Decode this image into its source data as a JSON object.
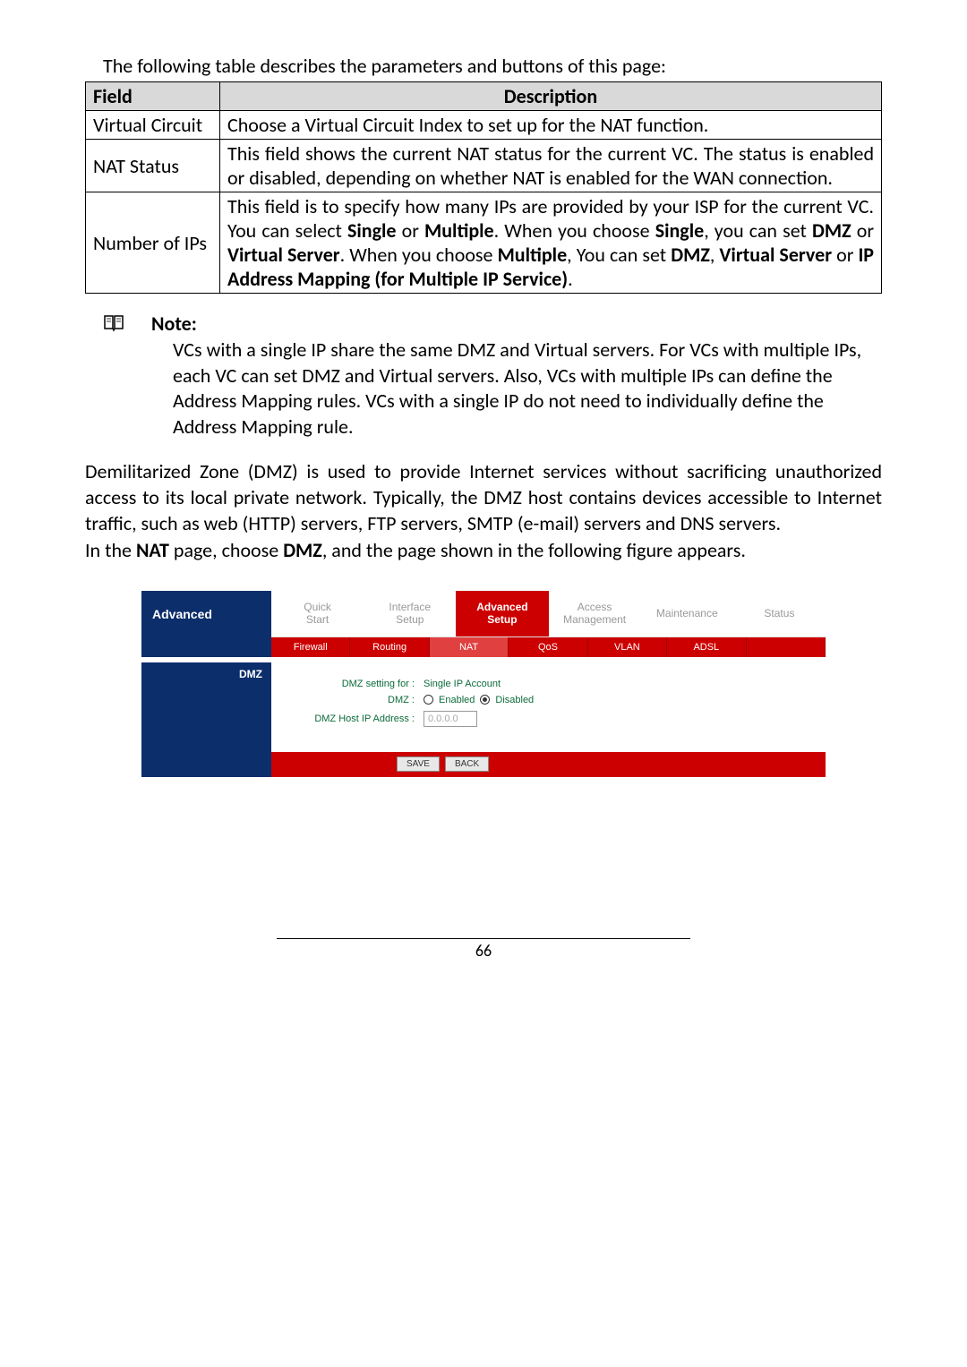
{
  "intro": "The following table describes the parameters and buttons of this page:",
  "table": {
    "headers": [
      "Field",
      "Description"
    ],
    "rows": [
      {
        "field": "Virtual Circuit",
        "description": "Choose a Virtual Circuit Index to set up for the NAT function."
      },
      {
        "field": "NAT Status",
        "description": "This field shows the current NAT status for the current VC. The status is enabled or disabled, depending on whether NAT is enabled for the WAN connection."
      },
      {
        "field": "Number of IPs",
        "description_parts": [
          {
            "text": "This field is to specify how many IPs are provided by your ISP for the current VC. You can select ",
            "bold": false
          },
          {
            "text": "Single",
            "bold": true
          },
          {
            "text": " or ",
            "bold": false
          },
          {
            "text": "Multiple",
            "bold": true
          },
          {
            "text": ". When you choose ",
            "bold": false
          },
          {
            "text": "Single",
            "bold": true
          },
          {
            "text": ", you can set ",
            "bold": false
          },
          {
            "text": "DMZ",
            "bold": true
          },
          {
            "text": " or ",
            "bold": false
          },
          {
            "text": "Virtual Server",
            "bold": true
          },
          {
            "text": ". When you choose ",
            "bold": false
          },
          {
            "text": "Multiple",
            "bold": true
          },
          {
            "text": ", You can set ",
            "bold": false
          },
          {
            "text": "DMZ",
            "bold": true
          },
          {
            "text": ", ",
            "bold": false
          },
          {
            "text": "Virtual Server",
            "bold": true
          },
          {
            "text": " or ",
            "bold": false
          },
          {
            "text": "IP Address Mapping (for Multiple IP Service)",
            "bold": true
          },
          {
            "text": ".",
            "bold": false
          }
        ]
      }
    ]
  },
  "note": {
    "label": "Note:",
    "body": "VCs with a single IP share the same DMZ and Virtual servers. For VCs with multiple IPs, each VC can set DMZ and Virtual servers. Also, VCs with multiple IPs can define the Address Mapping rules. VCs with a single IP do not need to individually define the Address Mapping rule."
  },
  "para1": "Demilitarized Zone (DMZ) is used to provide Internet services without sacrificing unauthorized access to its local private network. Typically, the DMZ host contains devices accessible to Internet traffic, such as web (HTTP) servers, FTP servers, SMTP (e-mail) servers and DNS servers.",
  "para2_parts": [
    {
      "text": "In the ",
      "bold": false
    },
    {
      "text": "NAT",
      "bold": true
    },
    {
      "text": " page, choose ",
      "bold": false
    },
    {
      "text": "DMZ",
      "bold": true
    },
    {
      "text": ", and the page shown in the following figure appears.",
      "bold": false
    }
  ],
  "router": {
    "side_label": "Advanced",
    "top_tabs": [
      {
        "line1": "Quick",
        "line2": "Start",
        "active": false
      },
      {
        "line1": "Interface",
        "line2": "Setup",
        "active": false
      },
      {
        "line1": "Advanced",
        "line2": "Setup",
        "active": true
      },
      {
        "line1": "Access",
        "line2": "Management",
        "active": false
      },
      {
        "line1": "Maintenance",
        "line2": "",
        "active": false
      },
      {
        "line1": "Status",
        "line2": "",
        "active": false
      }
    ],
    "sub_tabs": [
      {
        "label": "Firewall",
        "active": false
      },
      {
        "label": "Routing",
        "active": false
      },
      {
        "label": "NAT",
        "active": true
      },
      {
        "label": "QoS",
        "active": false
      },
      {
        "label": "VLAN",
        "active": false
      },
      {
        "label": "ADSL",
        "active": false
      },
      {
        "label": "",
        "active": false
      }
    ],
    "section_label": "DMZ",
    "form": {
      "row1_label": "DMZ setting for :",
      "row1_value": "Single IP Account",
      "row2_label": "DMZ :",
      "row2_opt1": "Enabled",
      "row2_opt2": "Disabled",
      "row3_label": "DMZ Host IP Address :",
      "row3_value": "0.0.0.0"
    },
    "buttons": [
      "SAVE",
      "BACK"
    ]
  },
  "page_number": "66",
  "colors": {
    "header_bg": "#d9d9d9",
    "router_blue": "#0c2e6b",
    "router_red": "#cc0000",
    "router_green": "#0c6b3a"
  }
}
